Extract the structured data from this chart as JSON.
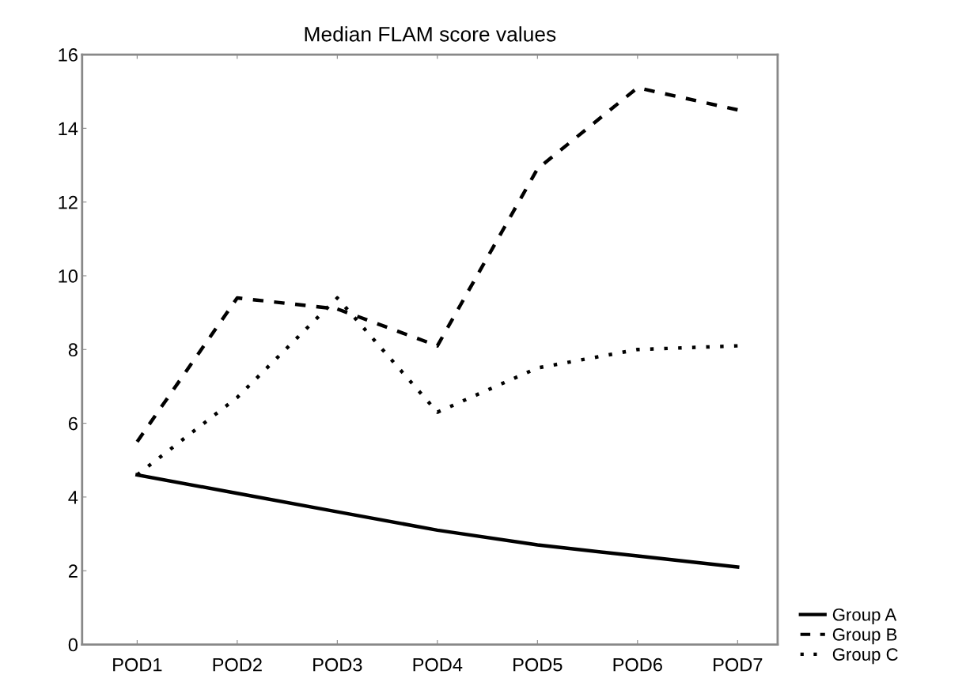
{
  "chart_data": {
    "type": "line",
    "title": "Median FLAM score values",
    "categories": [
      "POD1",
      "POD2",
      "POD3",
      "POD4",
      "POD5",
      "POD6",
      "POD7"
    ],
    "series": [
      {
        "name": "Group A",
        "color": "#000000",
        "line_style": "solid",
        "values": [
          4.6,
          4.1,
          3.6,
          3.1,
          2.7,
          2.4,
          2.1
        ]
      },
      {
        "name": "Group B",
        "color": "#000000",
        "line_style": "dashed",
        "values": [
          5.5,
          9.4,
          9.1,
          8.1,
          12.9,
          15.1,
          14.5
        ]
      },
      {
        "name": "Group C",
        "color": "#000000",
        "line_style": "dotted",
        "values": [
          4.6,
          6.7,
          9.4,
          6.3,
          7.5,
          8.0,
          8.1
        ]
      }
    ],
    "ylim": [
      0,
      16
    ],
    "yticks": [
      0,
      2,
      4,
      6,
      8,
      10,
      12,
      14,
      16
    ],
    "grid": false,
    "legend": "bottom right",
    "marker": "none"
  }
}
